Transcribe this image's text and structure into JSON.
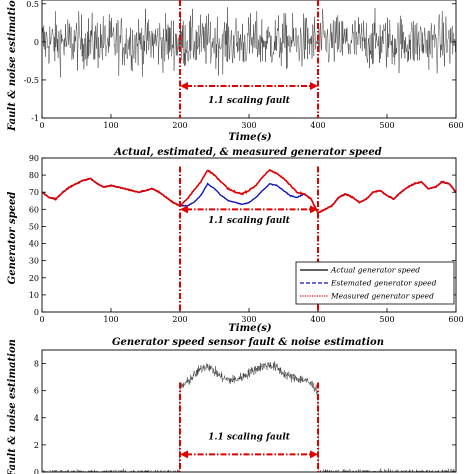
{
  "chart_data": [
    {
      "type": "line",
      "title": "",
      "xlabel": "Time(s)",
      "ylabel": "Fault & noise estimation",
      "xlim": [
        0,
        600
      ],
      "ylim": [
        -1,
        0.5
      ],
      "xticks": [
        "0",
        "100",
        "200",
        "300",
        "400",
        "500",
        "600"
      ],
      "yticks": [
        "-1",
        "-0.5",
        "0",
        "0.5"
      ],
      "series": [
        {
          "color": "#000000",
          "style": "noise",
          "mean": 0,
          "amplitude": 0.35
        }
      ],
      "annotation": {
        "text": "1.1 scaling fault",
        "x_start": 200,
        "x_end": 400,
        "color": "#e00000"
      }
    },
    {
      "type": "line",
      "title": "Actual, estimated, & measured generator speed",
      "xlabel": "Time(s)",
      "ylabel": "Generator speed",
      "xlim": [
        0,
        600
      ],
      "ylim": [
        0,
        90
      ],
      "xticks": [
        "0",
        "100",
        "200",
        "300",
        "400",
        "500",
        "600"
      ],
      "yticks": [
        "0",
        "10",
        "20",
        "30",
        "40",
        "50",
        "60",
        "70",
        "80",
        "90"
      ],
      "legend": "bottom-right",
      "series": [
        {
          "name": "Actual generator speed",
          "color": "#000000",
          "style": "solid"
        },
        {
          "name": "Estemated generator speed",
          "color": "#1010c0",
          "style": "dashed"
        },
        {
          "name": "Measured generator speed",
          "color": "#e00000",
          "style": "dotted"
        }
      ],
      "x": [
        0,
        10,
        20,
        30,
        40,
        50,
        60,
        70,
        80,
        90,
        100,
        110,
        120,
        130,
        140,
        150,
        160,
        170,
        180,
        190,
        200,
        210,
        220,
        230,
        240,
        250,
        260,
        270,
        280,
        290,
        300,
        310,
        320,
        330,
        340,
        350,
        360,
        370,
        380,
        390,
        400,
        410,
        420,
        430,
        440,
        450,
        460,
        470,
        480,
        490,
        500,
        510,
        520,
        530,
        540,
        550,
        560,
        570,
        580,
        590,
        600
      ],
      "measured": [
        70,
        67,
        66,
        70,
        73,
        75,
        77,
        78,
        75,
        73,
        74,
        73,
        72,
        71,
        70,
        71,
        72,
        70,
        67,
        64,
        62,
        66,
        71,
        76,
        83,
        80,
        76,
        72,
        70,
        69,
        71,
        74,
        79,
        83,
        81,
        78,
        74,
        70,
        69,
        66,
        58,
        60,
        62,
        67,
        69,
        67,
        64,
        66,
        70,
        71,
        68,
        66,
        70,
        73,
        75,
        76,
        72,
        73,
        76,
        75,
        70
      ],
      "estimated": [
        70,
        67,
        66,
        70,
        73,
        75,
        77,
        78,
        75,
        73,
        74,
        73,
        72,
        71,
        70,
        71,
        72,
        70,
        67,
        64,
        62,
        62,
        64,
        68,
        75,
        72,
        68,
        65,
        64,
        63,
        64,
        67,
        71,
        75,
        74,
        71,
        68,
        67,
        69,
        66,
        58,
        60,
        62,
        67,
        69,
        67,
        64,
        66,
        70,
        71,
        68,
        66,
        70,
        73,
        75,
        76,
        72,
        73,
        76,
        75,
        70
      ],
      "annotation": {
        "text": "1.1 scaling fault",
        "x_start": 200,
        "x_end": 400,
        "color": "#e00000"
      }
    },
    {
      "type": "line",
      "title": "Generator speed sensor fault & noise estimation",
      "xlabel": "",
      "ylabel": "Fault & noise estimation",
      "xlim": [
        0,
        600
      ],
      "ylim": [
        0,
        9
      ],
      "xticks": [],
      "yticks": [
        "0",
        "2",
        "4",
        "6",
        "8"
      ],
      "series": [
        {
          "color": "#000000",
          "style": "noise",
          "x": [
            0,
            199,
            200,
            210,
            220,
            230,
            240,
            250,
            260,
            270,
            280,
            290,
            300,
            310,
            320,
            330,
            340,
            350,
            360,
            370,
            380,
            390,
            400,
            401,
            600
          ],
          "values": [
            0,
            0,
            6.2,
            6.6,
            7.1,
            7.6,
            7.9,
            7.4,
            7.0,
            6.8,
            6.8,
            7.0,
            7.3,
            7.6,
            7.8,
            7.9,
            7.7,
            7.3,
            7.0,
            6.9,
            6.8,
            6.5,
            6.0,
            0,
            0
          ],
          "amplitude": 0.35
        }
      ],
      "annotation": {
        "text": "1.1 scaling fault",
        "x_start": 200,
        "x_end": 400,
        "color": "#e00000"
      }
    }
  ]
}
